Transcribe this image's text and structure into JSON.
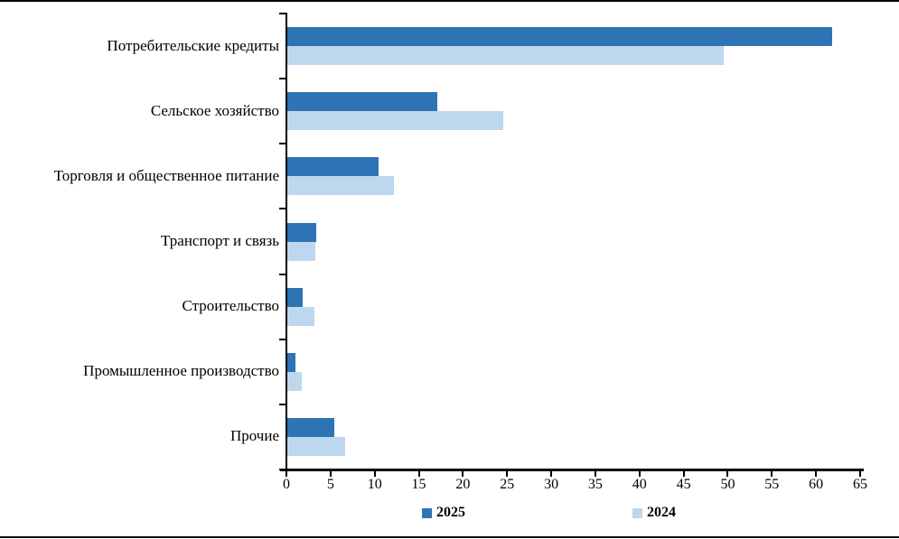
{
  "figure": {
    "background": "#ffffff",
    "border_color": "#000000"
  },
  "chart_data": {
    "type": "bar",
    "orientation": "horizontal",
    "title": "",
    "xlabel": "",
    "ylabel": "",
    "categories": [
      "Потребительские кредиты",
      "Сельское хозяйство",
      "Торговля и общественное питание",
      "Транспорт и связь",
      "Строительство",
      "Промышленное производство",
      "Прочие"
    ],
    "series": [
      {
        "name": "2025",
        "color": "#2E74B5",
        "values": [
          61.7,
          17.0,
          10.3,
          3.3,
          1.7,
          0.9,
          5.3
        ]
      },
      {
        "name": "2024",
        "color": "#BDD7EE",
        "values": [
          49.4,
          24.5,
          12.1,
          3.2,
          3.1,
          1.6,
          6.5
        ]
      }
    ],
    "xlim": [
      0,
      65
    ],
    "x_tick_step": 5,
    "x_tick_labels": [
      "0",
      "5",
      "10",
      "15",
      "20",
      "25",
      "30",
      "35",
      "40",
      "45",
      "50",
      "55",
      "60",
      "65"
    ],
    "grid": false,
    "legend_position": "bottom",
    "axis_color": "#000000",
    "text_color": "#000000"
  }
}
